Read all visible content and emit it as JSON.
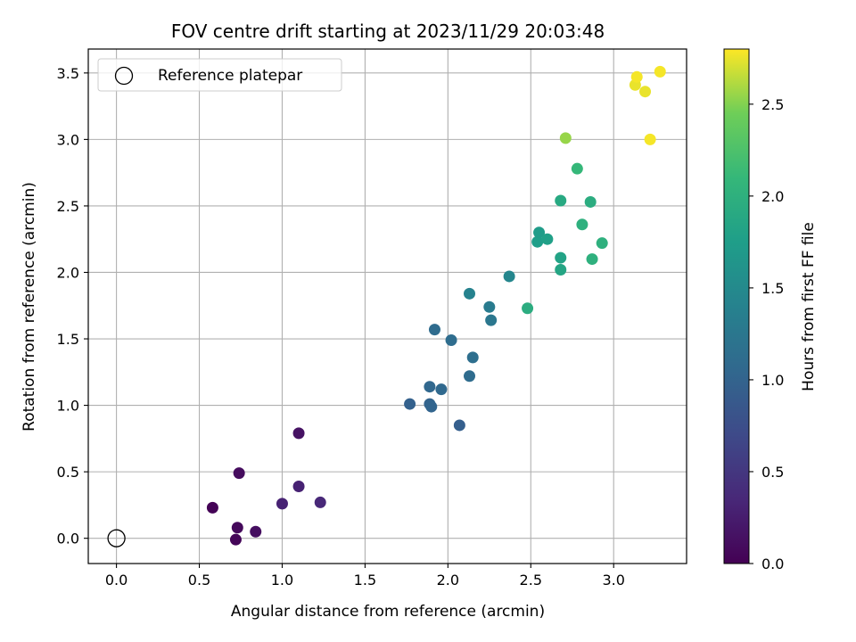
{
  "chart_data": {
    "type": "scatter",
    "title": "FOV centre drift starting at 2023/11/29 20:03:48",
    "xlabel": "Angular distance from reference (arcmin)",
    "ylabel": "Rotation from reference (arcmin)",
    "colorbar_label": "Hours from first FF file",
    "xlim": [
      -0.17,
      3.44
    ],
    "ylim": [
      -0.19,
      3.68
    ],
    "clim": [
      0.0,
      2.8
    ],
    "x_ticks": [
      "0.0",
      "0.5",
      "1.0",
      "1.5",
      "2.0",
      "2.5",
      "3.0"
    ],
    "y_ticks": [
      "0.0",
      "0.5",
      "1.0",
      "1.5",
      "2.0",
      "2.5",
      "3.0",
      "3.5"
    ],
    "colorbar_ticks": [
      "0.0",
      "0.5",
      "1.0",
      "1.5",
      "2.0",
      "2.5"
    ],
    "grid": true,
    "colormap": "viridis",
    "legend": {
      "position": "top-left",
      "entries": [
        {
          "label": "Reference platepar",
          "marker": "open-circle",
          "color": "#000000"
        }
      ]
    },
    "reference_point": {
      "x": 0.0,
      "y": 0.0
    },
    "points": [
      {
        "x": 0.58,
        "y": 0.23,
        "c": 0.02
      },
      {
        "x": 0.72,
        "y": -0.01,
        "c": 0.04
      },
      {
        "x": 0.73,
        "y": 0.08,
        "c": 0.07
      },
      {
        "x": 0.74,
        "y": 0.49,
        "c": 0.1
      },
      {
        "x": 0.84,
        "y": 0.05,
        "c": 0.12
      },
      {
        "x": 1.1,
        "y": 0.79,
        "c": 0.15
      },
      {
        "x": 1.0,
        "y": 0.26,
        "c": 0.3
      },
      {
        "x": 1.1,
        "y": 0.39,
        "c": 0.3
      },
      {
        "x": 1.23,
        "y": 0.27,
        "c": 0.35
      },
      {
        "x": 2.07,
        "y": 0.85,
        "c": 0.95
      },
      {
        "x": 1.77,
        "y": 1.01,
        "c": 0.97
      },
      {
        "x": 1.89,
        "y": 1.01,
        "c": 1.0
      },
      {
        "x": 1.9,
        "y": 0.99,
        "c": 1.02
      },
      {
        "x": 1.89,
        "y": 1.14,
        "c": 1.05
      },
      {
        "x": 1.96,
        "y": 1.12,
        "c": 1.07
      },
      {
        "x": 2.13,
        "y": 1.22,
        "c": 1.1
      },
      {
        "x": 2.15,
        "y": 1.36,
        "c": 1.15
      },
      {
        "x": 1.92,
        "y": 1.57,
        "c": 1.1
      },
      {
        "x": 2.02,
        "y": 1.49,
        "c": 1.12
      },
      {
        "x": 2.26,
        "y": 1.64,
        "c": 1.25
      },
      {
        "x": 2.25,
        "y": 1.74,
        "c": 1.3
      },
      {
        "x": 2.13,
        "y": 1.84,
        "c": 1.4
      },
      {
        "x": 2.37,
        "y": 1.97,
        "c": 1.45
      },
      {
        "x": 2.48,
        "y": 1.73,
        "c": 1.95
      },
      {
        "x": 2.54,
        "y": 2.23,
        "c": 1.75
      },
      {
        "x": 2.55,
        "y": 2.3,
        "c": 1.72
      },
      {
        "x": 2.6,
        "y": 2.25,
        "c": 1.78
      },
      {
        "x": 2.68,
        "y": 2.11,
        "c": 1.82
      },
      {
        "x": 2.68,
        "y": 2.02,
        "c": 1.85
      },
      {
        "x": 2.68,
        "y": 2.54,
        "c": 1.9
      },
      {
        "x": 2.81,
        "y": 2.36,
        "c": 2.0
      },
      {
        "x": 2.86,
        "y": 2.53,
        "c": 1.95
      },
      {
        "x": 2.87,
        "y": 2.1,
        "c": 2.0
      },
      {
        "x": 2.93,
        "y": 2.22,
        "c": 2.0
      },
      {
        "x": 2.78,
        "y": 2.78,
        "c": 2.1
      },
      {
        "x": 2.71,
        "y": 3.01,
        "c": 2.55
      },
      {
        "x": 3.13,
        "y": 3.41,
        "c": 2.75
      },
      {
        "x": 3.14,
        "y": 3.47,
        "c": 2.78
      },
      {
        "x": 3.19,
        "y": 3.36,
        "c": 2.75
      },
      {
        "x": 3.22,
        "y": 3.0,
        "c": 2.78
      },
      {
        "x": 3.28,
        "y": 3.51,
        "c": 2.78
      }
    ]
  }
}
